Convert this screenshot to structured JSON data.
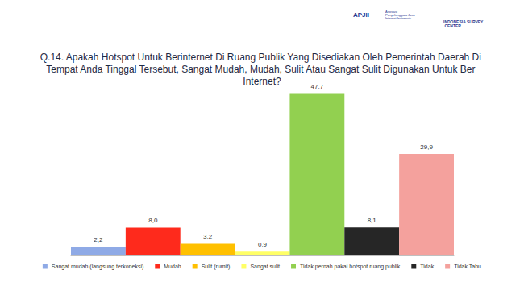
{
  "chart_data": {
    "type": "bar",
    "title": "Q.14. Apakah Hotspot Untuk Berinternet Di Ruang Publik Yang Disediakan Oleh Pemerintah Daerah Di Tempat Anda Tinggal Tersebut, Sangat Mudah, Mudah, Sulit Atau Sangat Sulit Digunakan Untuk Ber Internet?",
    "categories": [
      "Sangat mudah (langsung terkoneksi)",
      "Mudah",
      "Sulit (rumit)",
      "Sangat sulit",
      "Tidak pernah pakai hotspot ruang publik",
      "Tidak",
      "Tidak Tahu"
    ],
    "values": [
      2.2,
      8.0,
      3.2,
      0.9,
      47.7,
      8.1,
      29.9
    ],
    "value_labels": [
      "2,2",
      "8,0",
      "3,2",
      "0,9",
      "47,7",
      "8,1",
      "29,9"
    ],
    "colors": [
      "#8faae6",
      "#fe2a1c",
      "#ffc000",
      "#ffff66",
      "#92d050",
      "#262626",
      "#f4a19d"
    ],
    "ylim": [
      0,
      50
    ],
    "data_labels": true,
    "tick_labels": false,
    "grid": false,
    "legend": "bottom"
  },
  "logos": [
    "APJII",
    "Asosiasi Penyelenggara Jasa Internet Indonesia",
    "INDONESIA SURVEY CENTER"
  ]
}
